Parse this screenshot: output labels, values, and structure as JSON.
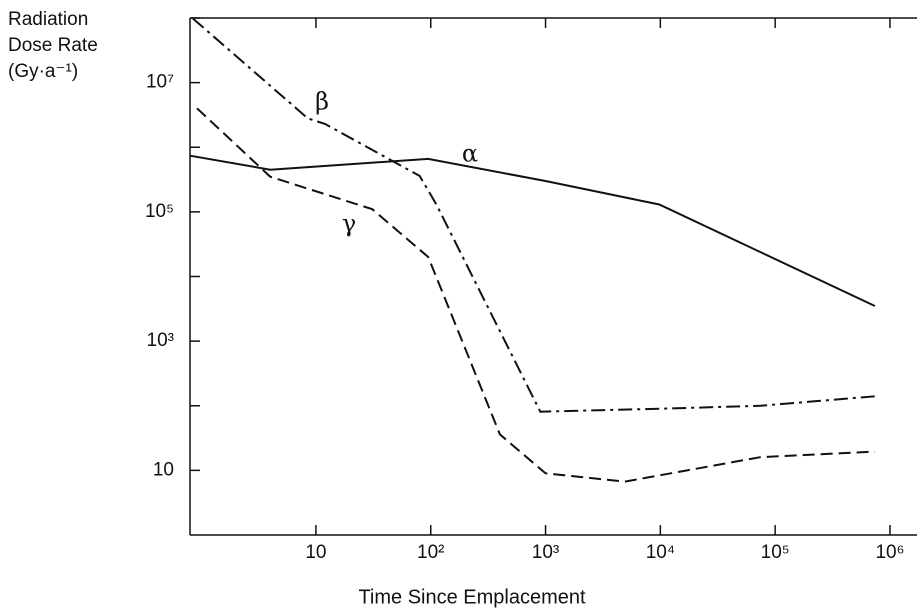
{
  "chart_data": {
    "type": "line",
    "xlabel": "Time Since Emplacement",
    "ylabel": [
      "Radiation",
      "Dose Rate",
      "(Gy·a⁻¹)"
    ],
    "xscale": "log",
    "yscale": "log",
    "xlim": [
      0.8,
      1720000
    ],
    "ylim": [
      1,
      100000000
    ],
    "xticks": [
      10,
      {
        "value": 100,
        "label": "10²"
      },
      {
        "value": 1000,
        "label": "10³"
      },
      {
        "value": 10000,
        "label": "10⁴"
      },
      {
        "value": 100000,
        "label": "10⁵"
      },
      {
        "value": 1000000,
        "label": "10⁶"
      }
    ],
    "yticks": [
      10,
      {
        "value": 1000,
        "label": "10³"
      },
      {
        "value": 100000,
        "label": "10⁵"
      },
      {
        "value": 10000000,
        "label": "10⁷"
      }
    ],
    "yticks_minor": [
      100,
      10000,
      1000000,
      100000000
    ],
    "series": [
      {
        "name": "α",
        "color": "#111111",
        "dash": "solid",
        "x": [
          0.8,
          4,
          95,
          1000,
          9800,
          740000
        ],
        "values": [
          740000,
          450000,
          660000,
          300000,
          130000,
          3500
        ]
      },
      {
        "name": "β",
        "color": "#111111",
        "dash": "dashdot",
        "x": [
          0.85,
          8.5,
          12,
          80,
          112,
          900,
          10000,
          74000,
          740000
        ],
        "values": [
          98000000,
          2800000,
          2300000,
          360000,
          130000,
          81,
          90,
          100,
          140
        ]
      },
      {
        "name": "γ",
        "color": "#111111",
        "dash": "dashed",
        "x": [
          0.92,
          4,
          31,
          95,
          400,
          1000,
          4900,
          74000,
          740000
        ],
        "values": [
          4000000,
          350000,
          110000,
          20000,
          36,
          9,
          6.7,
          16,
          19.5
        ]
      }
    ]
  }
}
